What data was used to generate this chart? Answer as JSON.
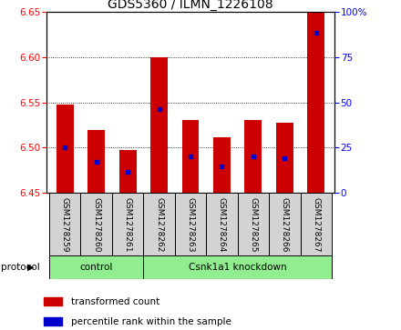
{
  "title": "GDS5360 / ILMN_1226108",
  "samples": [
    "GSM1278259",
    "GSM1278260",
    "GSM1278261",
    "GSM1278262",
    "GSM1278263",
    "GSM1278264",
    "GSM1278265",
    "GSM1278266",
    "GSM1278267"
  ],
  "bar_tops": [
    6.548,
    6.519,
    6.497,
    6.6,
    6.53,
    6.511,
    6.53,
    6.527,
    6.65
  ],
  "bar_bottoms": [
    6.45,
    6.45,
    6.45,
    6.45,
    6.45,
    6.45,
    6.45,
    6.45,
    6.45
  ],
  "blue_marker_values": [
    6.5,
    6.484,
    6.473,
    6.543,
    6.49,
    6.479,
    6.49,
    6.488,
    6.627
  ],
  "ylim": [
    6.45,
    6.65
  ],
  "y_ticks": [
    6.45,
    6.5,
    6.55,
    6.6,
    6.65
  ],
  "right_yticks": [
    0,
    25,
    50,
    75,
    100
  ],
  "right_yticklabels": [
    "0",
    "25",
    "50",
    "75",
    "100%"
  ],
  "bar_color": "#cc0000",
  "blue_color": "#0000cc",
  "control_count": 3,
  "knockdown_count": 6,
  "group_labels": [
    "control",
    "Csnk1a1 knockdown"
  ],
  "group_color": "#90ee90",
  "sample_box_color": "#d3d3d3",
  "legend_bar": "transformed count",
  "legend_blue": "percentile rank within the sample",
  "plot_bg": "#ffffff",
  "title_fontsize": 10,
  "tick_fontsize": 7.5,
  "sample_fontsize": 6.5,
  "proto_fontsize": 7.5,
  "legend_fontsize": 7.5
}
